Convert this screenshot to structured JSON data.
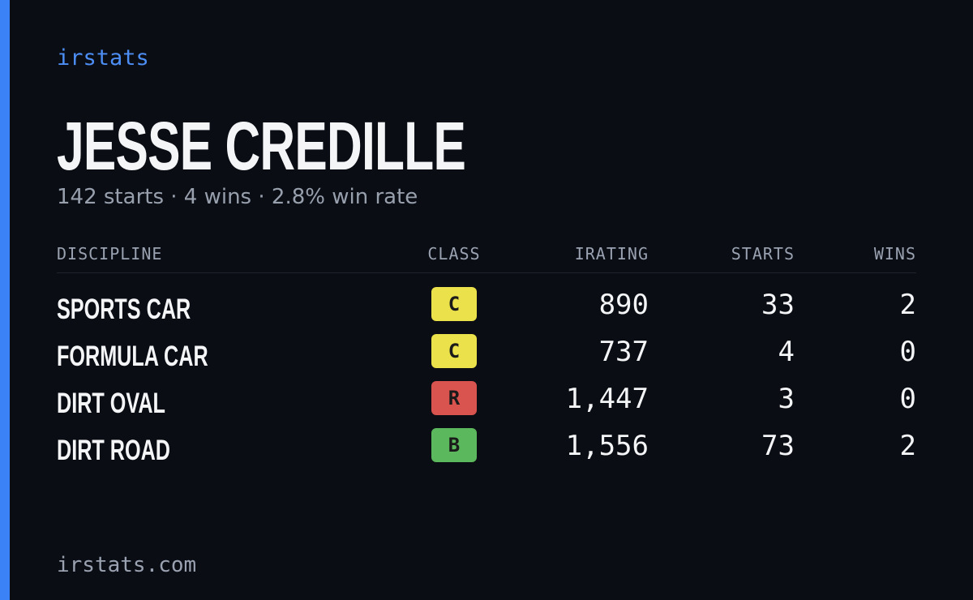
{
  "header": {
    "brand": "irstats",
    "title": "JESSE CREDILLE",
    "subtitle": "142 starts · 4 wins · 2.8% win rate"
  },
  "table": {
    "columns": [
      "DISCIPLINE",
      "CLASS",
      "IRATING",
      "STARTS",
      "WINS"
    ],
    "rows": [
      {
        "discipline": "SPORTS CAR",
        "class": "C",
        "class_color": "#ebe14b",
        "irating": "890",
        "starts": "33",
        "wins": "2"
      },
      {
        "discipline": "FORMULA CAR",
        "class": "C",
        "class_color": "#ebe14b",
        "irating": "737",
        "starts": "4",
        "wins": "0"
      },
      {
        "discipline": "DIRT OVAL",
        "class": "R",
        "class_color": "#d9534f",
        "irating": "1,447",
        "starts": "3",
        "wins": "0"
      },
      {
        "discipline": "DIRT ROAD",
        "class": "B",
        "class_color": "#5cb85c",
        "irating": "1,556",
        "starts": "73",
        "wins": "2"
      }
    ]
  },
  "footer": {
    "site": "irstats.com"
  }
}
